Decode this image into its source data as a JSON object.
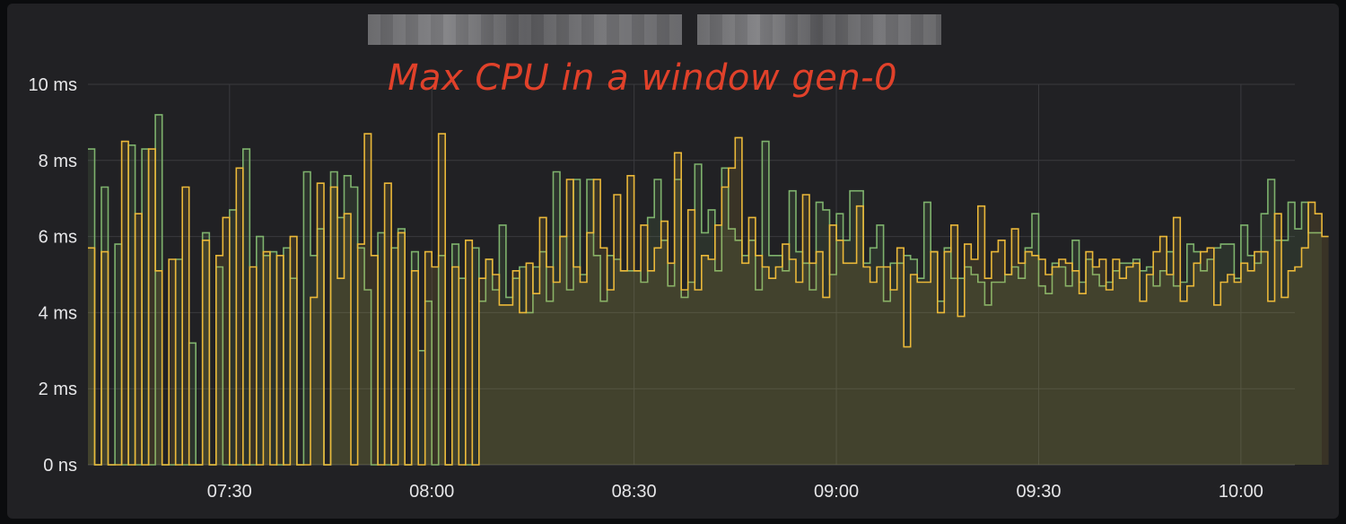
{
  "annotation": "Max CPU in a window gen-0",
  "chart_data": {
    "type": "line",
    "title": "",
    "xlabel": "",
    "ylabel": "",
    "x_start": "07:09",
    "x_end": "10:08",
    "x_step_minutes": 1,
    "xlim": [
      "07:09",
      "10:08"
    ],
    "ylim": [
      0,
      10
    ],
    "y_unit": "ms",
    "y_ticks": [
      "0 ns",
      "2 ms",
      "4 ms",
      "6 ms",
      "8 ms",
      "10 ms"
    ],
    "y_tick_values": [
      0,
      2,
      4,
      6,
      8,
      10
    ],
    "x_ticks": [
      "07:30",
      "08:00",
      "08:30",
      "09:00",
      "09:30",
      "10:00"
    ],
    "grid": true,
    "legend": "none",
    "series": [
      {
        "color": "#7eb26d",
        "values": [
          8.3,
          0,
          7.3,
          0,
          5.8,
          0,
          8.4,
          0,
          8.3,
          0,
          9.2,
          0,
          0,
          5.4,
          0,
          3.2,
          0,
          6.1,
          0,
          5.2,
          0,
          6.7,
          0,
          8.3,
          0,
          6.0,
          5.5,
          5.6,
          0,
          5.7,
          4.9,
          0,
          7.7,
          5.5,
          6.2,
          0,
          7.7,
          6.5,
          7.6,
          7.3,
          5.7,
          4.6,
          0,
          6.1,
          0,
          5.7,
          6.2,
          0,
          5.6,
          3.0,
          4.3,
          0,
          5.5,
          0,
          5.8,
          4.9,
          0,
          5.7,
          4.3,
          5.4,
          4.6,
          6.3,
          4.4,
          4.9,
          5.2,
          4.0,
          5.2,
          5.6,
          4.3,
          7.7,
          6.0,
          4.6,
          7.5,
          5.0,
          7.5,
          5.5,
          4.3,
          5.5,
          5.4,
          5.1,
          5.1,
          5.1,
          4.8,
          6.5,
          7.5,
          5.9,
          4.7,
          7.5,
          4.4,
          4.8,
          7.9,
          6.1,
          6.7,
          5.1,
          7.8,
          6.2,
          5.9,
          5.5,
          5.9,
          4.6,
          8.5,
          5.5,
          5.5,
          5.1,
          7.2,
          5.6,
          5.3,
          4.6,
          6.9,
          6.7,
          5.0,
          6.6,
          5.9,
          7.2,
          7.2,
          5.3,
          5.7,
          6.3,
          4.3,
          5.3,
          5.3,
          5.5,
          5.4,
          4.9,
          6.9,
          5.6,
          4.3,
          5.7,
          4.9,
          4.9,
          5.2,
          5.0,
          4.8,
          4.2,
          4.8,
          4.8,
          5.0,
          5.2,
          4.9,
          5.7,
          6.6,
          4.7,
          4.5,
          5.3,
          5.2,
          4.7,
          5.9,
          4.8,
          5.4,
          5.0,
          4.7,
          4.8,
          5.1,
          5.3,
          5.3,
          5.4,
          5.1,
          5.2,
          4.7,
          5.1,
          5.6,
          4.7,
          4.8,
          5.8,
          5.6,
          5.1,
          5.4,
          5.7,
          5.8,
          5.8,
          4.9,
          6.3,
          5.5,
          5.3,
          6.6,
          7.5,
          5.9,
          5.9,
          6.9,
          6.2,
          6.9,
          6.1,
          6.1
        ]
      },
      {
        "color": "#eab839",
        "values": [
          5.7,
          0,
          5.6,
          0,
          0,
          8.5,
          0,
          6.6,
          0,
          8.3,
          5.1,
          0,
          5.4,
          0,
          7.3,
          0,
          0,
          5.9,
          0,
          5.5,
          6.5,
          0,
          7.8,
          0,
          5.2,
          0,
          5.6,
          0,
          5.5,
          0,
          6.0,
          0,
          0,
          4.4,
          7.4,
          0,
          7.3,
          4.9,
          6.6,
          0,
          5.8,
          8.7,
          5.5,
          0,
          7.4,
          0,
          6.1,
          0,
          5.1,
          0,
          5.6,
          5.2,
          8.7,
          0,
          5.2,
          0,
          5.9,
          0,
          4.9,
          5.4,
          5.0,
          4.2,
          4.2,
          5.1,
          4.0,
          5.3,
          4.5,
          6.5,
          5.2,
          4.8,
          6.0,
          7.5,
          5.2,
          4.8,
          6.1,
          7.5,
          5.7,
          4.6,
          7.1,
          5.1,
          7.6,
          5.1,
          6.3,
          5.1,
          5.7,
          6.4,
          5.3,
          8.2,
          4.6,
          6.7,
          4.6,
          5.5,
          5.4,
          6.3,
          7.3,
          7.8,
          8.6,
          5.3,
          6.5,
          5.5,
          5.2,
          4.9,
          5.2,
          5.8,
          5.4,
          4.8,
          7.1,
          5.3,
          5.6,
          4.4,
          6.3,
          5.9,
          5.3,
          5.3,
          6.8,
          5.2,
          4.8,
          5.2,
          5.2,
          4.6,
          5.7,
          3.1,
          5.0,
          4.8,
          4.8,
          5.6,
          4.0,
          5.6,
          6.3,
          3.9,
          5.8,
          5.4,
          6.8,
          4.9,
          5.6,
          5.9,
          5.0,
          6.2,
          5.3,
          5.6,
          5.5,
          5.4,
          5.0,
          5.2,
          5.4,
          5.3,
          5.1,
          4.5,
          5.6,
          5.2,
          5.4,
          4.6,
          5.4,
          4.9,
          5.2,
          5.3,
          4.3,
          5.0,
          5.6,
          6.0,
          5.0,
          6.5,
          4.3,
          4.7,
          5.3,
          5.6,
          5.7,
          4.2,
          4.8,
          5.0,
          4.8,
          5.3,
          5.1,
          5.6,
          5.6,
          4.3,
          6.6,
          4.4,
          5.1,
          5.2,
          5.7,
          6.9,
          6.6,
          6.0
        ]
      }
    ]
  }
}
